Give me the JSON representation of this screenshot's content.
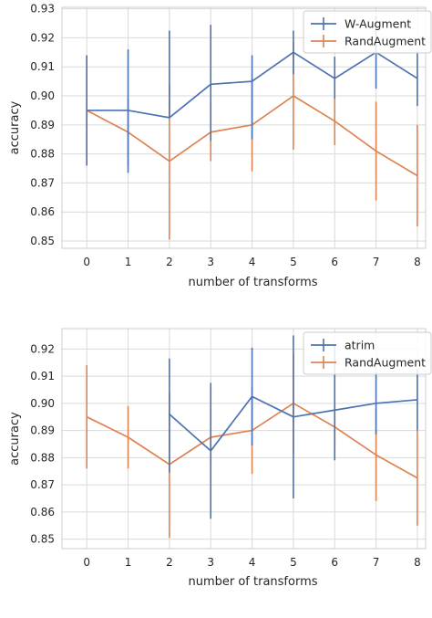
{
  "chart_data": [
    {
      "type": "line",
      "xlabel": "number of transforms",
      "ylabel": "accuracy",
      "x": [
        0,
        1,
        2,
        3,
        4,
        5,
        6,
        7,
        8
      ],
      "xticks": [
        "0",
        "1",
        "2",
        "3",
        "4",
        "5",
        "6",
        "7",
        "8"
      ],
      "yticks": [
        "0.85",
        "0.86",
        "0.87",
        "0.88",
        "0.89",
        "0.90",
        "0.91",
        "0.92",
        "0.93"
      ],
      "xlim": [
        -0.6,
        8.2
      ],
      "ylim": [
        0.8475,
        0.9305
      ],
      "grid": true,
      "legend_position": "top-right",
      "error_bars": true,
      "series": [
        {
          "name": "W-Augment",
          "color": "#4c72b0",
          "values": [
            0.895,
            0.895,
            0.8925,
            0.904,
            0.905,
            0.915,
            0.906,
            0.915,
            0.906
          ],
          "err_low": [
            0.876,
            0.8735,
            0.8925,
            0.8845,
            0.885,
            0.9075,
            0.899,
            0.9025,
            0.8965
          ],
          "err_high": [
            0.914,
            0.916,
            0.9225,
            0.9245,
            0.914,
            0.9225,
            0.9135,
            0.9275,
            0.9155
          ]
        },
        {
          "name": "RandAugment",
          "color": "#dd8452",
          "values": [
            0.895,
            0.8875,
            0.8775,
            0.8875,
            0.89,
            0.9,
            0.8913,
            0.881,
            0.8725
          ],
          "err_low": [
            0.876,
            0.876,
            0.8505,
            0.8775,
            0.874,
            0.8815,
            0.883,
            0.864,
            0.855
          ],
          "err_high": [
            0.914,
            0.899,
            0.904,
            0.898,
            0.906,
            0.9185,
            0.8995,
            0.898,
            0.89
          ]
        }
      ]
    },
    {
      "type": "line",
      "xlabel": "number of transforms",
      "ylabel": "accuracy",
      "x": [
        0,
        1,
        2,
        3,
        4,
        5,
        6,
        7,
        8
      ],
      "xticks": [
        "0",
        "1",
        "2",
        "3",
        "4",
        "5",
        "6",
        "7",
        "8"
      ],
      "yticks": [
        "0.85",
        "0.86",
        "0.87",
        "0.88",
        "0.89",
        "0.90",
        "0.91",
        "0.92"
      ],
      "xlim": [
        -0.6,
        8.2
      ],
      "ylim": [
        0.8465,
        0.9275
      ],
      "grid": true,
      "legend_position": "top-right",
      "error_bars": true,
      "series": [
        {
          "name": "atrim",
          "color": "#4c72b0",
          "x": [
            2,
            3,
            4,
            5,
            6,
            7,
            8
          ],
          "values": [
            0.896,
            0.8825,
            0.9025,
            0.895,
            0.8975,
            0.9,
            0.9013
          ],
          "err_low": [
            0.8745,
            0.8575,
            0.8845,
            0.865,
            0.879,
            0.8885,
            0.89
          ],
          "err_high": [
            0.9165,
            0.9075,
            0.9205,
            0.925,
            0.9215,
            0.9115,
            0.9125
          ]
        },
        {
          "name": "RandAugment",
          "color": "#dd8452",
          "values": [
            0.895,
            0.8875,
            0.8775,
            0.8875,
            0.89,
            0.9,
            0.8913,
            0.881,
            0.8725
          ],
          "err_low": [
            0.876,
            0.876,
            0.8505,
            0.8775,
            0.874,
            0.8815,
            0.883,
            0.864,
            0.855
          ],
          "err_high": [
            0.914,
            0.899,
            0.904,
            0.898,
            0.906,
            0.9185,
            0.8995,
            0.898,
            0.89
          ]
        }
      ]
    }
  ]
}
